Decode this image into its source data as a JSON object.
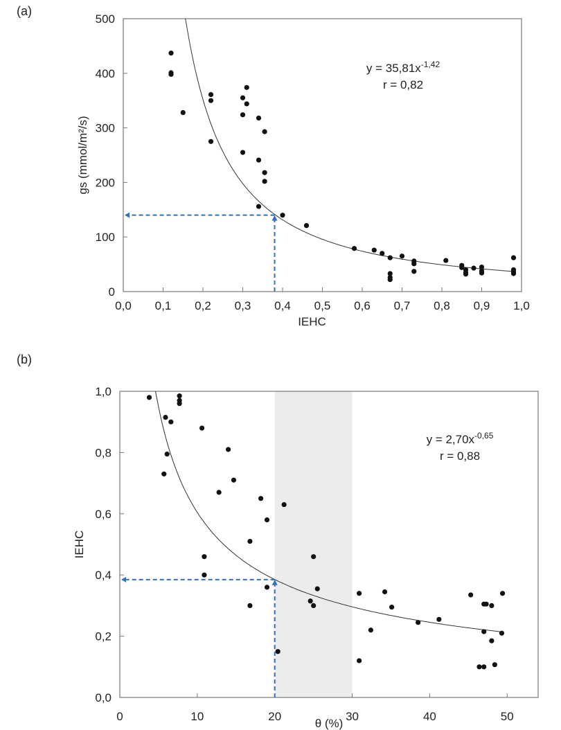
{
  "chart_data": [
    {
      "panel_label": "(a)",
      "type": "scatter",
      "xlabel": "IEHC",
      "ylabel": "gs (mmol/m²/s)",
      "xlim": [
        0,
        1
      ],
      "ylim": [
        0,
        500
      ],
      "xticks": [
        "0,0",
        "0,1",
        "0,2",
        "0,3",
        "0,4",
        "0,5",
        "0,6",
        "0,7",
        "0,8",
        "0,9",
        "1,0"
      ],
      "yticks": [
        "0",
        "100",
        "200",
        "300",
        "400",
        "500"
      ],
      "equation": "y = 35,81x",
      "equation_exponent": "-1,42",
      "r_label": "r = 0,82",
      "fit": {
        "type": "power",
        "a": 35.81,
        "b": -1.42,
        "x_range": [
          0.156,
          0.98
        ]
      },
      "guide": {
        "x": 0.38,
        "y": 140,
        "color": "#2f6fc6"
      },
      "points": [
        [
          0.12,
          437
        ],
        [
          0.12,
          401
        ],
        [
          0.12,
          398
        ],
        [
          0.15,
          328
        ],
        [
          0.22,
          361
        ],
        [
          0.22,
          350
        ],
        [
          0.22,
          275
        ],
        [
          0.3,
          355
        ],
        [
          0.31,
          374
        ],
        [
          0.31,
          344
        ],
        [
          0.3,
          324
        ],
        [
          0.3,
          255
        ],
        [
          0.34,
          318
        ],
        [
          0.34,
          241
        ],
        [
          0.34,
          156
        ],
        [
          0.355,
          293
        ],
        [
          0.355,
          218
        ],
        [
          0.355,
          202
        ],
        [
          0.4,
          140
        ],
        [
          0.46,
          121
        ],
        [
          0.58,
          79
        ],
        [
          0.63,
          76
        ],
        [
          0.65,
          70
        ],
        [
          0.67,
          62
        ],
        [
          0.67,
          33
        ],
        [
          0.67,
          26
        ],
        [
          0.67,
          22
        ],
        [
          0.7,
          65
        ],
        [
          0.73,
          56
        ],
        [
          0.73,
          51
        ],
        [
          0.73,
          37
        ],
        [
          0.81,
          57
        ],
        [
          0.85,
          48
        ],
        [
          0.85,
          44
        ],
        [
          0.86,
          40
        ],
        [
          0.86,
          35
        ],
        [
          0.86,
          32
        ],
        [
          0.88,
          43
        ],
        [
          0.9,
          45
        ],
        [
          0.9,
          38
        ],
        [
          0.9,
          34
        ],
        [
          0.98,
          62
        ],
        [
          0.98,
          40
        ],
        [
          0.98,
          36
        ],
        [
          0.98,
          33
        ]
      ]
    },
    {
      "panel_label": "(b)",
      "type": "scatter",
      "xlabel": "θ (%)",
      "ylabel": "IEHC",
      "xlim": [
        0,
        54
      ],
      "ylim": [
        0,
        1
      ],
      "xticks": [
        "0",
        "10",
        "20",
        "30",
        "40",
        "50"
      ],
      "yticks": [
        "0,0",
        "0,2",
        "0,4",
        "0,6",
        "0,8",
        "1,0"
      ],
      "equation": "y = 2,70x",
      "equation_exponent": "-0,65",
      "r_label": "r = 0,88",
      "fit": {
        "type": "power",
        "a": 2.7,
        "b": -0.65,
        "x_range": [
          4.6,
          49.5
        ]
      },
      "shaded_band": {
        "x": [
          20,
          30
        ],
        "color": "#ececec"
      },
      "guide": {
        "x": 20,
        "y": 0.385,
        "color": "#2f6fc6"
      },
      "points": [
        [
          3.8,
          0.98
        ],
        [
          7.7,
          0.985
        ],
        [
          7.7,
          0.97
        ],
        [
          7.7,
          0.96
        ],
        [
          5.9,
          0.915
        ],
        [
          6.6,
          0.9
        ],
        [
          10.6,
          0.88
        ],
        [
          6.1,
          0.795
        ],
        [
          5.7,
          0.73
        ],
        [
          14,
          0.81
        ],
        [
          14.7,
          0.71
        ],
        [
          12.8,
          0.67
        ],
        [
          18.2,
          0.65
        ],
        [
          21.2,
          0.63
        ],
        [
          19,
          0.58
        ],
        [
          16.8,
          0.51
        ],
        [
          10.9,
          0.46
        ],
        [
          10.9,
          0.4
        ],
        [
          16.8,
          0.3
        ],
        [
          19,
          0.36
        ],
        [
          20.4,
          0.15
        ],
        [
          25,
          0.46
        ],
        [
          25.5,
          0.355
        ],
        [
          24.6,
          0.315
        ],
        [
          25,
          0.3
        ],
        [
          30.9,
          0.34
        ],
        [
          34.2,
          0.345
        ],
        [
          35.1,
          0.295
        ],
        [
          32.4,
          0.22
        ],
        [
          30.9,
          0.12
        ],
        [
          38.5,
          0.245
        ],
        [
          41.2,
          0.255
        ],
        [
          45.3,
          0.335
        ],
        [
          47,
          0.305
        ],
        [
          47.3,
          0.305
        ],
        [
          48,
          0.3
        ],
        [
          49.4,
          0.34
        ],
        [
          47,
          0.215
        ],
        [
          49.3,
          0.21
        ],
        [
          48,
          0.185
        ],
        [
          46.4,
          0.1
        ],
        [
          47,
          0.1
        ],
        [
          48.4,
          0.107
        ]
      ]
    }
  ]
}
